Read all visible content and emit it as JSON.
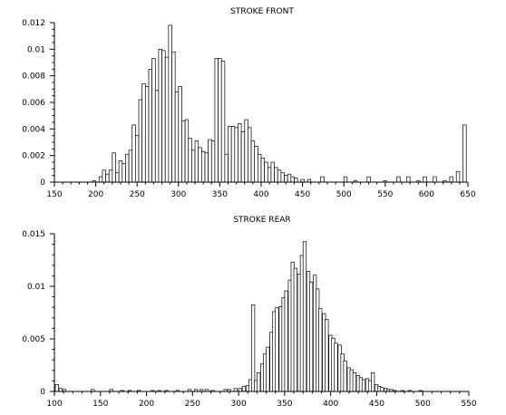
{
  "chart_data": [
    {
      "type": "bar",
      "title": "STROKE FRONT",
      "xlabel": "",
      "ylabel": "",
      "xlim": [
        150,
        650
      ],
      "ylim": [
        0,
        0.012
      ],
      "x_ticks": [
        "150",
        "200",
        "250",
        "300",
        "350",
        "400",
        "450",
        "500",
        "550",
        "600",
        "650"
      ],
      "y_ticks": [
        "0",
        "0.002",
        "0.004",
        "0.006",
        "0.008",
        "0.01",
        "0.012"
      ],
      "bin_width": 4,
      "bins": [
        [
          196,
          0.0001
        ],
        [
          204,
          0.0004
        ],
        [
          208,
          0.0009
        ],
        [
          212,
          0.0006
        ],
        [
          216,
          0.0009
        ],
        [
          220,
          0.0022
        ],
        [
          224,
          0.0007
        ],
        [
          228,
          0.0016
        ],
        [
          232,
          0.0014
        ],
        [
          236,
          0.0021
        ],
        [
          240,
          0.0024
        ],
        [
          244,
          0.0043
        ],
        [
          248,
          0.0035
        ],
        [
          252,
          0.0062
        ],
        [
          256,
          0.0074
        ],
        [
          260,
          0.0072
        ],
        [
          264,
          0.0085
        ],
        [
          268,
          0.0093
        ],
        [
          272,
          0.0069
        ],
        [
          276,
          0.01
        ],
        [
          280,
          0.0099
        ],
        [
          284,
          0.0094
        ],
        [
          288,
          0.0118
        ],
        [
          292,
          0.0098
        ],
        [
          296,
          0.0068
        ],
        [
          300,
          0.0072
        ],
        [
          304,
          0.0046
        ],
        [
          308,
          0.0047
        ],
        [
          312,
          0.0033
        ],
        [
          316,
          0.0024
        ],
        [
          320,
          0.0031
        ],
        [
          324,
          0.0026
        ],
        [
          328,
          0.0023
        ],
        [
          332,
          0.0022
        ],
        [
          336,
          0.0032
        ],
        [
          340,
          0.0031
        ],
        [
          344,
          0.0093
        ],
        [
          348,
          0.0093
        ],
        [
          352,
          0.0091
        ],
        [
          356,
          0.0021
        ],
        [
          360,
          0.0042
        ],
        [
          364,
          0.0042
        ],
        [
          368,
          0.0041
        ],
        [
          372,
          0.0044
        ],
        [
          376,
          0.0038
        ],
        [
          380,
          0.0047
        ],
        [
          384,
          0.0041
        ],
        [
          388,
          0.0031
        ],
        [
          392,
          0.0027
        ],
        [
          396,
          0.0021
        ],
        [
          400,
          0.0018
        ],
        [
          404,
          0.0015
        ],
        [
          408,
          0.0011
        ],
        [
          412,
          0.0015
        ],
        [
          416,
          0.0011
        ],
        [
          420,
          0.0009
        ],
        [
          424,
          0.0007
        ],
        [
          428,
          0.0005
        ],
        [
          432,
          0.0006
        ],
        [
          436,
          0.0004
        ],
        [
          440,
          0.0003
        ],
        [
          448,
          0.0002
        ],
        [
          456,
          0.0002
        ],
        [
          472,
          0.0004
        ],
        [
          500,
          0.0004
        ],
        [
          512,
          0.0001
        ],
        [
          528,
          0.0004
        ],
        [
          548,
          0.0001
        ],
        [
          564,
          0.0004
        ],
        [
          576,
          0.0004
        ],
        [
          588,
          0.0001
        ],
        [
          596,
          0.0004
        ],
        [
          608,
          0.0004
        ],
        [
          620,
          0.0001
        ],
        [
          628,
          0.0004
        ],
        [
          636,
          0.0008
        ],
        [
          644,
          0.0043
        ]
      ]
    },
    {
      "type": "bar",
      "title": "STROKE REAR",
      "xlabel": "",
      "ylabel": "",
      "xlim": [
        100,
        550
      ],
      "ylim": [
        0,
        0.016
      ],
      "x_ticks": [
        "100",
        "150",
        "200",
        "250",
        "300",
        "350",
        "400",
        "450",
        "500",
        "550"
      ],
      "y_ticks": [
        "0",
        "0.005",
        "0.01",
        "0.015"
      ],
      "bin_width": 3.5,
      "bins": [
        [
          101,
          0.0007
        ],
        [
          105,
          0.0003
        ],
        [
          109,
          0.0002
        ],
        [
          140,
          0.0002
        ],
        [
          160,
          0.0002
        ],
        [
          172,
          0.0001
        ],
        [
          180,
          0.0001
        ],
        [
          190,
          0.0001
        ],
        [
          205,
          0.0001
        ],
        [
          212,
          0.0001
        ],
        [
          220,
          0.0001
        ],
        [
          232,
          0.0001
        ],
        [
          245,
          0.0002
        ],
        [
          252,
          0.0002
        ],
        [
          258,
          0.0002
        ],
        [
          264,
          0.0002
        ],
        [
          270,
          0.0001
        ],
        [
          284,
          0.0002
        ],
        [
          288,
          0.0002
        ],
        [
          295,
          0.0003
        ],
        [
          300,
          0.0003
        ],
        [
          304,
          0.0005
        ],
        [
          308,
          0.0006
        ],
        [
          311,
          0.0012
        ],
        [
          314,
          0.0088
        ],
        [
          317,
          0.0011
        ],
        [
          320,
          0.0019
        ],
        [
          324,
          0.0028
        ],
        [
          327,
          0.0038
        ],
        [
          330,
          0.0045
        ],
        [
          334,
          0.006
        ],
        [
          337,
          0.0081
        ],
        [
          340,
          0.0085
        ],
        [
          344,
          0.0086
        ],
        [
          347,
          0.0095
        ],
        [
          350,
          0.0102
        ],
        [
          354,
          0.0113
        ],
        [
          357,
          0.0131
        ],
        [
          360,
          0.0125
        ],
        [
          364,
          0.0119
        ],
        [
          367,
          0.0138
        ],
        [
          370,
          0.0152
        ],
        [
          374,
          0.0122
        ],
        [
          377,
          0.0111
        ],
        [
          381,
          0.0118
        ],
        [
          384,
          0.0104
        ],
        [
          387,
          0.0084
        ],
        [
          391,
          0.0079
        ],
        [
          394,
          0.0073
        ],
        [
          398,
          0.0057
        ],
        [
          401,
          0.0054
        ],
        [
          404,
          0.0049
        ],
        [
          408,
          0.0047
        ],
        [
          411,
          0.0038
        ],
        [
          414,
          0.0031
        ],
        [
          418,
          0.0024
        ],
        [
          421,
          0.0022
        ],
        [
          424,
          0.0019
        ],
        [
          428,
          0.0016
        ],
        [
          431,
          0.0014
        ],
        [
          434,
          0.0012
        ],
        [
          438,
          0.0013
        ],
        [
          441,
          0.0011
        ],
        [
          444,
          0.0019
        ],
        [
          448,
          0.0007
        ],
        [
          451,
          0.0005
        ],
        [
          454,
          0.0004
        ],
        [
          458,
          0.0003
        ],
        [
          461,
          0.0002
        ],
        [
          464,
          0.0002
        ],
        [
          468,
          0.0001
        ],
        [
          476,
          0.0001
        ],
        [
          484,
          0.0001
        ],
        [
          496,
          0.0001
        ]
      ]
    }
  ]
}
